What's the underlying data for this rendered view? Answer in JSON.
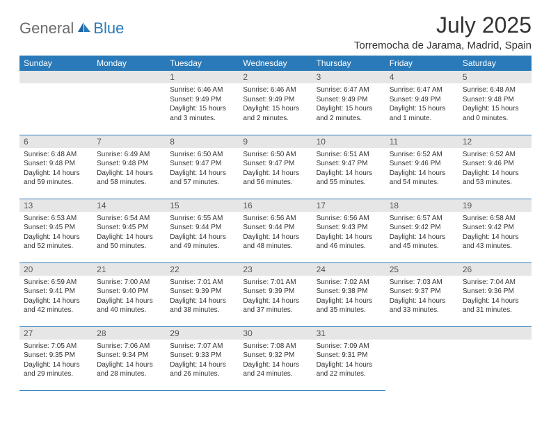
{
  "logo": {
    "general": "General",
    "blue": "Blue"
  },
  "title": "July 2025",
  "location": "Torremocha de Jarama, Madrid, Spain",
  "colors": {
    "header_bg": "#2a7ab9",
    "header_text": "#ffffff",
    "daynum_bg": "#e6e6e6",
    "text": "#333333",
    "logo_gray": "#6b6b6b",
    "logo_blue": "#2a7ab9",
    "border": "#2a7ab9",
    "background": "#ffffff"
  },
  "weekdays": [
    "Sunday",
    "Monday",
    "Tuesday",
    "Wednesday",
    "Thursday",
    "Friday",
    "Saturday"
  ],
  "weeks": [
    [
      null,
      null,
      {
        "n": "1",
        "sr": "Sunrise: 6:46 AM",
        "ss": "Sunset: 9:49 PM",
        "dl1": "Daylight: 15 hours",
        "dl2": "and 3 minutes."
      },
      {
        "n": "2",
        "sr": "Sunrise: 6:46 AM",
        "ss": "Sunset: 9:49 PM",
        "dl1": "Daylight: 15 hours",
        "dl2": "and 2 minutes."
      },
      {
        "n": "3",
        "sr": "Sunrise: 6:47 AM",
        "ss": "Sunset: 9:49 PM",
        "dl1": "Daylight: 15 hours",
        "dl2": "and 2 minutes."
      },
      {
        "n": "4",
        "sr": "Sunrise: 6:47 AM",
        "ss": "Sunset: 9:49 PM",
        "dl1": "Daylight: 15 hours",
        "dl2": "and 1 minute."
      },
      {
        "n": "5",
        "sr": "Sunrise: 6:48 AM",
        "ss": "Sunset: 9:48 PM",
        "dl1": "Daylight: 15 hours",
        "dl2": "and 0 minutes."
      }
    ],
    [
      {
        "n": "6",
        "sr": "Sunrise: 6:48 AM",
        "ss": "Sunset: 9:48 PM",
        "dl1": "Daylight: 14 hours",
        "dl2": "and 59 minutes."
      },
      {
        "n": "7",
        "sr": "Sunrise: 6:49 AM",
        "ss": "Sunset: 9:48 PM",
        "dl1": "Daylight: 14 hours",
        "dl2": "and 58 minutes."
      },
      {
        "n": "8",
        "sr": "Sunrise: 6:50 AM",
        "ss": "Sunset: 9:47 PM",
        "dl1": "Daylight: 14 hours",
        "dl2": "and 57 minutes."
      },
      {
        "n": "9",
        "sr": "Sunrise: 6:50 AM",
        "ss": "Sunset: 9:47 PM",
        "dl1": "Daylight: 14 hours",
        "dl2": "and 56 minutes."
      },
      {
        "n": "10",
        "sr": "Sunrise: 6:51 AM",
        "ss": "Sunset: 9:47 PM",
        "dl1": "Daylight: 14 hours",
        "dl2": "and 55 minutes."
      },
      {
        "n": "11",
        "sr": "Sunrise: 6:52 AM",
        "ss": "Sunset: 9:46 PM",
        "dl1": "Daylight: 14 hours",
        "dl2": "and 54 minutes."
      },
      {
        "n": "12",
        "sr": "Sunrise: 6:52 AM",
        "ss": "Sunset: 9:46 PM",
        "dl1": "Daylight: 14 hours",
        "dl2": "and 53 minutes."
      }
    ],
    [
      {
        "n": "13",
        "sr": "Sunrise: 6:53 AM",
        "ss": "Sunset: 9:45 PM",
        "dl1": "Daylight: 14 hours",
        "dl2": "and 52 minutes."
      },
      {
        "n": "14",
        "sr": "Sunrise: 6:54 AM",
        "ss": "Sunset: 9:45 PM",
        "dl1": "Daylight: 14 hours",
        "dl2": "and 50 minutes."
      },
      {
        "n": "15",
        "sr": "Sunrise: 6:55 AM",
        "ss": "Sunset: 9:44 PM",
        "dl1": "Daylight: 14 hours",
        "dl2": "and 49 minutes."
      },
      {
        "n": "16",
        "sr": "Sunrise: 6:56 AM",
        "ss": "Sunset: 9:44 PM",
        "dl1": "Daylight: 14 hours",
        "dl2": "and 48 minutes."
      },
      {
        "n": "17",
        "sr": "Sunrise: 6:56 AM",
        "ss": "Sunset: 9:43 PM",
        "dl1": "Daylight: 14 hours",
        "dl2": "and 46 minutes."
      },
      {
        "n": "18",
        "sr": "Sunrise: 6:57 AM",
        "ss": "Sunset: 9:42 PM",
        "dl1": "Daylight: 14 hours",
        "dl2": "and 45 minutes."
      },
      {
        "n": "19",
        "sr": "Sunrise: 6:58 AM",
        "ss": "Sunset: 9:42 PM",
        "dl1": "Daylight: 14 hours",
        "dl2": "and 43 minutes."
      }
    ],
    [
      {
        "n": "20",
        "sr": "Sunrise: 6:59 AM",
        "ss": "Sunset: 9:41 PM",
        "dl1": "Daylight: 14 hours",
        "dl2": "and 42 minutes."
      },
      {
        "n": "21",
        "sr": "Sunrise: 7:00 AM",
        "ss": "Sunset: 9:40 PM",
        "dl1": "Daylight: 14 hours",
        "dl2": "and 40 minutes."
      },
      {
        "n": "22",
        "sr": "Sunrise: 7:01 AM",
        "ss": "Sunset: 9:39 PM",
        "dl1": "Daylight: 14 hours",
        "dl2": "and 38 minutes."
      },
      {
        "n": "23",
        "sr": "Sunrise: 7:01 AM",
        "ss": "Sunset: 9:39 PM",
        "dl1": "Daylight: 14 hours",
        "dl2": "and 37 minutes."
      },
      {
        "n": "24",
        "sr": "Sunrise: 7:02 AM",
        "ss": "Sunset: 9:38 PM",
        "dl1": "Daylight: 14 hours",
        "dl2": "and 35 minutes."
      },
      {
        "n": "25",
        "sr": "Sunrise: 7:03 AM",
        "ss": "Sunset: 9:37 PM",
        "dl1": "Daylight: 14 hours",
        "dl2": "and 33 minutes."
      },
      {
        "n": "26",
        "sr": "Sunrise: 7:04 AM",
        "ss": "Sunset: 9:36 PM",
        "dl1": "Daylight: 14 hours",
        "dl2": "and 31 minutes."
      }
    ],
    [
      {
        "n": "27",
        "sr": "Sunrise: 7:05 AM",
        "ss": "Sunset: 9:35 PM",
        "dl1": "Daylight: 14 hours",
        "dl2": "and 29 minutes."
      },
      {
        "n": "28",
        "sr": "Sunrise: 7:06 AM",
        "ss": "Sunset: 9:34 PM",
        "dl1": "Daylight: 14 hours",
        "dl2": "and 28 minutes."
      },
      {
        "n": "29",
        "sr": "Sunrise: 7:07 AM",
        "ss": "Sunset: 9:33 PM",
        "dl1": "Daylight: 14 hours",
        "dl2": "and 26 minutes."
      },
      {
        "n": "30",
        "sr": "Sunrise: 7:08 AM",
        "ss": "Sunset: 9:32 PM",
        "dl1": "Daylight: 14 hours",
        "dl2": "and 24 minutes."
      },
      {
        "n": "31",
        "sr": "Sunrise: 7:09 AM",
        "ss": "Sunset: 9:31 PM",
        "dl1": "Daylight: 14 hours",
        "dl2": "and 22 minutes."
      },
      null,
      null
    ]
  ]
}
